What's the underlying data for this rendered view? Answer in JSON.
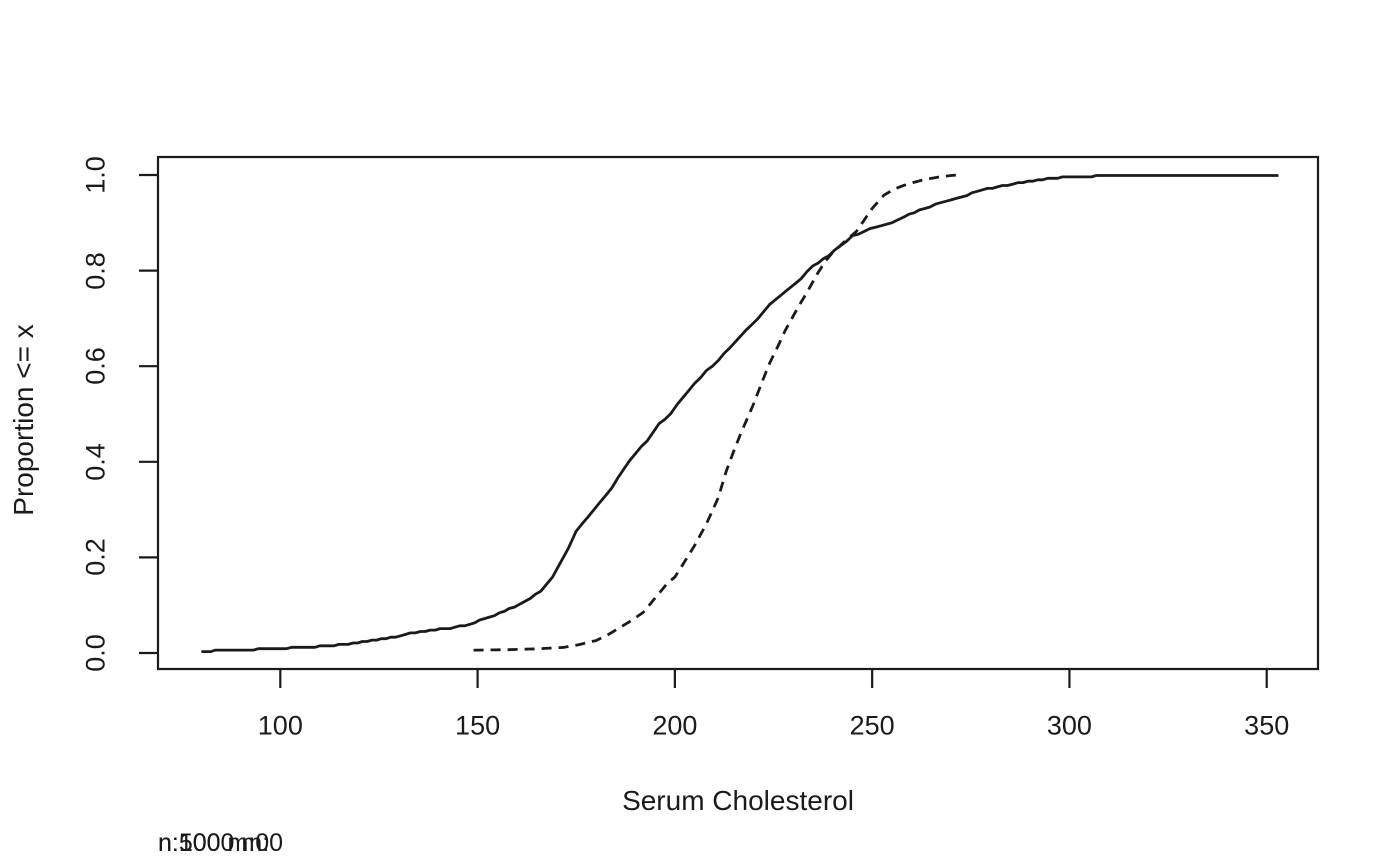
{
  "figure": {
    "background": "#ffffff",
    "foreground": "#1a1a1a"
  },
  "chart_data": {
    "type": "line",
    "subtype": "ecdf",
    "title": "",
    "xlabel": "Serum Cholesterol",
    "ylabel": "Proportion <= x",
    "xlim": [
      69,
      363
    ],
    "ylim": [
      0,
      1
    ],
    "x_ticks": [
      100,
      150,
      200,
      250,
      300,
      350
    ],
    "x_tick_labels": [
      "100",
      "150",
      "200",
      "250",
      "300",
      "350"
    ],
    "y_ticks": [
      0.0,
      0.2,
      0.4,
      0.6,
      0.8,
      1.0
    ],
    "y_tick_labels": [
      "0.0",
      "0.2",
      "0.4",
      "0.6",
      "0.8",
      "1.0"
    ],
    "grid": false,
    "legend_position": "none",
    "subtitles": [
      "n:500 m:0",
      "n:1000 m:0"
    ],
    "series": [
      {
        "name": "ecdf-solid",
        "line_style": "solid",
        "points": [
          [
            80,
            0.004
          ],
          [
            86,
            0.005
          ],
          [
            92,
            0.007
          ],
          [
            98,
            0.009
          ],
          [
            104,
            0.011
          ],
          [
            110,
            0.014
          ],
          [
            116,
            0.018
          ],
          [
            122,
            0.024
          ],
          [
            128,
            0.032
          ],
          [
            133,
            0.041
          ],
          [
            138,
            0.047
          ],
          [
            143,
            0.052
          ],
          [
            148,
            0.06
          ],
          [
            153,
            0.075
          ],
          [
            158,
            0.092
          ],
          [
            162,
            0.108
          ],
          [
            166,
            0.13
          ],
          [
            169,
            0.16
          ],
          [
            171,
            0.19
          ],
          [
            173,
            0.22
          ],
          [
            175,
            0.255
          ],
          [
            178,
            0.285
          ],
          [
            181,
            0.315
          ],
          [
            184,
            0.345
          ],
          [
            187,
            0.385
          ],
          [
            190,
            0.417
          ],
          [
            193,
            0.445
          ],
          [
            196,
            0.48
          ],
          [
            199,
            0.5
          ],
          [
            202,
            0.535
          ],
          [
            205,
            0.565
          ],
          [
            208,
            0.59
          ],
          [
            211,
            0.612
          ],
          [
            214,
            0.64
          ],
          [
            218,
            0.675
          ],
          [
            221,
            0.7
          ],
          [
            224,
            0.728
          ],
          [
            228,
            0.755
          ],
          [
            232,
            0.784
          ],
          [
            235,
            0.81
          ],
          [
            239,
            0.832
          ],
          [
            242,
            0.852
          ],
          [
            245,
            0.872
          ],
          [
            248,
            0.882
          ],
          [
            251,
            0.892
          ],
          [
            255,
            0.901
          ],
          [
            258,
            0.912
          ],
          [
            262,
            0.927
          ],
          [
            266,
            0.938
          ],
          [
            270,
            0.948
          ],
          [
            274,
            0.958
          ],
          [
            278,
            0.969
          ],
          [
            283,
            0.977
          ],
          [
            287,
            0.983
          ],
          [
            292,
            0.989
          ],
          [
            297,
            0.994
          ],
          [
            302,
            0.996
          ],
          [
            308,
            0.998
          ],
          [
            313,
            0.999
          ],
          [
            317,
            1.0
          ],
          [
            353,
            1.0
          ]
        ]
      },
      {
        "name": "ecdf-dashed",
        "line_style": "dashed",
        "points": [
          [
            149,
            0.006
          ],
          [
            158,
            0.007
          ],
          [
            166,
            0.009
          ],
          [
            172,
            0.012
          ],
          [
            176,
            0.018
          ],
          [
            180,
            0.026
          ],
          [
            183,
            0.038
          ],
          [
            186,
            0.053
          ],
          [
            189,
            0.068
          ],
          [
            192,
            0.085
          ],
          [
            195,
            0.115
          ],
          [
            198,
            0.145
          ],
          [
            200,
            0.159
          ],
          [
            202,
            0.185
          ],
          [
            205,
            0.225
          ],
          [
            208,
            0.27
          ],
          [
            211,
            0.325
          ],
          [
            213,
            0.38
          ],
          [
            215,
            0.424
          ],
          [
            217,
            0.465
          ],
          [
            220,
            0.522
          ],
          [
            222,
            0.565
          ],
          [
            224,
            0.606
          ],
          [
            226,
            0.64
          ],
          [
            228,
            0.675
          ],
          [
            230,
            0.705
          ],
          [
            232,
            0.734
          ],
          [
            234,
            0.762
          ],
          [
            236,
            0.792
          ],
          [
            238,
            0.818
          ],
          [
            240,
            0.838
          ],
          [
            242,
            0.853
          ],
          [
            244,
            0.868
          ],
          [
            246,
            0.882
          ],
          [
            248,
            0.906
          ],
          [
            250,
            0.93
          ],
          [
            253,
            0.958
          ],
          [
            256,
            0.972
          ],
          [
            259,
            0.981
          ],
          [
            263,
            0.99
          ],
          [
            267,
            0.996
          ],
          [
            270,
            0.999
          ],
          [
            272,
            1.0
          ]
        ]
      }
    ]
  }
}
